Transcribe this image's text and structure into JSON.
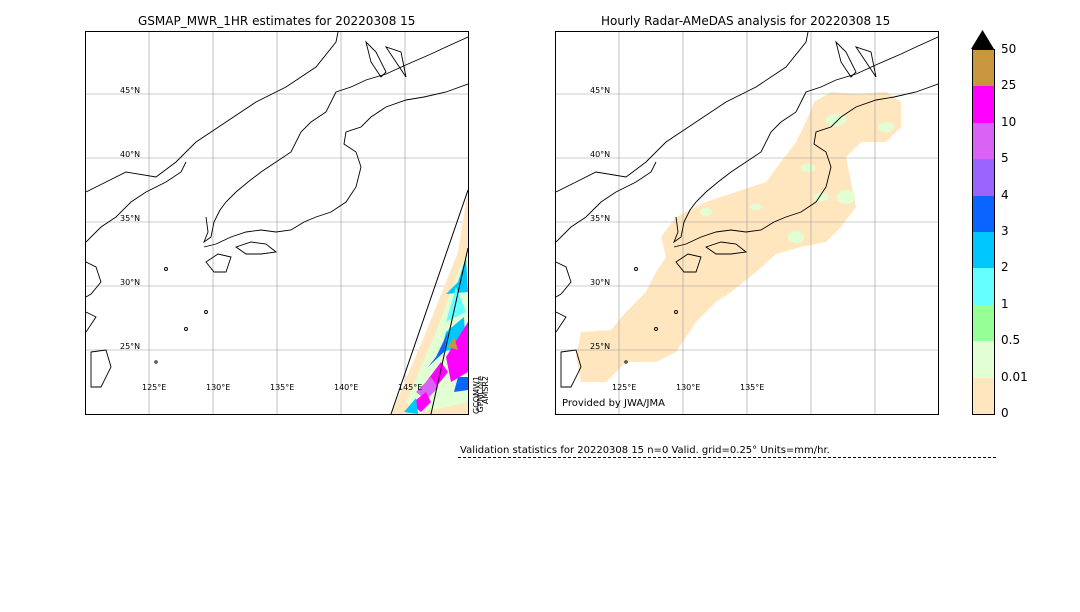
{
  "left_panel": {
    "title": "GSMAP_MWR_1HR estimates for 20220308 15",
    "lat_labels": [
      "45°N",
      "40°N",
      "35°N",
      "30°N",
      "25°N"
    ],
    "lon_labels": [
      "125°E",
      "130°E",
      "135°E",
      "140°E",
      "145°E"
    ],
    "satellite_labels": [
      "GCOMW1",
      "AMSR2",
      "GPMCore"
    ]
  },
  "right_panel": {
    "title": "Hourly Radar-AMeDAS analysis for 20220308 15",
    "lat_labels": [
      "45°N",
      "40°N",
      "35°N",
      "30°N",
      "25°N"
    ],
    "lon_labels": [
      "125°E",
      "130°E",
      "135°E"
    ],
    "provider": "Provided by JWA/JMA"
  },
  "colorbar": {
    "ticks": [
      "50",
      "25",
      "10",
      "5",
      "4",
      "3",
      "2",
      "1",
      "0.5",
      "0.01",
      "0"
    ],
    "colors": [
      "#c8963c",
      "#ff00ff",
      "#da63f5",
      "#9b64ff",
      "#0a64ff",
      "#00c8ff",
      "#64ffff",
      "#96ff96",
      "#e1ffd2",
      "#ffe6be"
    ],
    "extend_color": "#000000"
  },
  "validation": {
    "text": "Validation statistics for 20220308 15  n=0 Valid. grid=0.25° Units=mm/hr."
  }
}
